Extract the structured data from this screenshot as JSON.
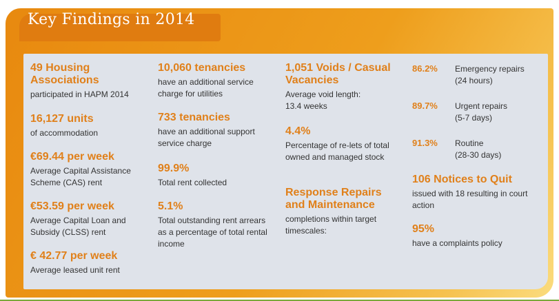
{
  "title": "Key Findings in 2014",
  "col1": [
    {
      "head": "49 Housing Associations",
      "desc": "participated in HAPM 2014"
    },
    {
      "head": "16,127 units",
      "desc": "of accommodation"
    },
    {
      "head": "€69.44 per week",
      "desc": "Average Capital Assistance Scheme (CAS) rent"
    },
    {
      "head": "€53.59 per week",
      "desc": "Average Capital Loan and Subsidy (CLSS) rent"
    },
    {
      "head": "€ 42.77 per week",
      "desc": "Average leased unit rent"
    }
  ],
  "col2": [
    {
      "head": "10,060 tenancies",
      "desc": "have an additional service charge for utilities"
    },
    {
      "head": "733 tenancies",
      "desc": "have an additional support service charge"
    },
    {
      "head": "99.9%",
      "desc": "Total rent collected"
    },
    {
      "head": "5.1%",
      "desc": "Total outstanding rent arrears as a percentage of total rental income"
    }
  ],
  "col3": [
    {
      "head": "1,051 Voids / Casual Vacancies",
      "desc": "Average void length: 13.4 weeks"
    },
    {
      "head": "4.4%",
      "desc": "Percentage of re-lets of total owned and managed stock"
    },
    {
      "head": "Response Repairs and Maintenance",
      "desc": "completions within target timescales:"
    }
  ],
  "col4": {
    "repairs": [
      {
        "pct": "86.2%",
        "label": "Emergency repairs",
        "sub": "(24 hours)"
      },
      {
        "pct": "89.7%",
        "label": "Urgent repairs",
        "sub": "(5-7 days)"
      },
      {
        "pct": "91.3%",
        "label": "Routine",
        "sub": "(28-30 days)"
      }
    ],
    "notices": {
      "head": "106 Notices to Quit",
      "desc": "issued with 18 resulting in court action"
    },
    "complaints": {
      "head": "95%",
      "desc": "have a complaints policy"
    }
  }
}
